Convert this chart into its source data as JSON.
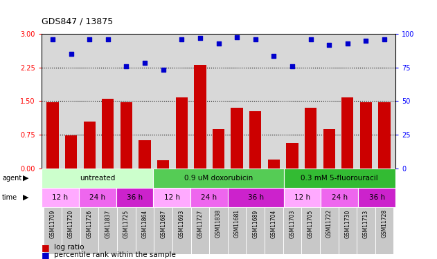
{
  "title": "GDS847 / 13875",
  "samples": [
    "GSM11709",
    "GSM11720",
    "GSM11726",
    "GSM11837",
    "GSM11725",
    "GSM11864",
    "GSM11687",
    "GSM11693",
    "GSM11727",
    "GSM11838",
    "GSM11681",
    "GSM11689",
    "GSM11704",
    "GSM11703",
    "GSM11705",
    "GSM11722",
    "GSM11730",
    "GSM11713",
    "GSM11728"
  ],
  "log_ratio": [
    1.47,
    0.73,
    1.05,
    1.55,
    1.48,
    0.63,
    0.18,
    1.58,
    2.3,
    0.88,
    1.35,
    1.28,
    0.2,
    0.57,
    1.35,
    0.88,
    1.58,
    1.48,
    1.48
  ],
  "percentile_left": [
    2.88,
    2.55,
    2.88,
    2.88,
    2.28,
    2.35,
    2.2,
    2.88,
    2.9,
    2.78,
    2.92,
    2.88,
    2.5,
    2.28,
    2.88,
    2.75,
    2.78,
    2.85,
    2.88
  ],
  "bar_color": "#cc0000",
  "dot_color": "#0000cc",
  "ylim_left": [
    0,
    3
  ],
  "ylim_right": [
    0,
    100
  ],
  "yticks_left": [
    0,
    0.75,
    1.5,
    2.25,
    3
  ],
  "yticks_right": [
    0,
    25,
    50,
    75,
    100
  ],
  "hlines": [
    0.75,
    1.5,
    2.25
  ],
  "agent_groups": [
    {
      "label": "untreated",
      "start": 0,
      "end": 6,
      "color": "#ccffcc"
    },
    {
      "label": "0.9 uM doxorubicin",
      "start": 6,
      "end": 13,
      "color": "#55cc55"
    },
    {
      "label": "0.3 mM 5-fluorouracil",
      "start": 13,
      "end": 19,
      "color": "#33bb33"
    }
  ],
  "time_groups": [
    {
      "label": "12 h",
      "start": 0,
      "end": 2,
      "color": "#ffaaff"
    },
    {
      "label": "24 h",
      "start": 2,
      "end": 4,
      "color": "#ee66ee"
    },
    {
      "label": "36 h",
      "start": 4,
      "end": 6,
      "color": "#cc22cc"
    },
    {
      "label": "12 h",
      "start": 6,
      "end": 8,
      "color": "#ffaaff"
    },
    {
      "label": "24 h",
      "start": 8,
      "end": 10,
      "color": "#ee66ee"
    },
    {
      "label": "36 h",
      "start": 10,
      "end": 13,
      "color": "#cc22cc"
    },
    {
      "label": "12 h",
      "start": 13,
      "end": 15,
      "color": "#ffaaff"
    },
    {
      "label": "24 h",
      "start": 15,
      "end": 17,
      "color": "#ee66ee"
    },
    {
      "label": "36 h",
      "start": 17,
      "end": 19,
      "color": "#cc22cc"
    }
  ],
  "bg_color": "#d8d8d8",
  "n": 19
}
